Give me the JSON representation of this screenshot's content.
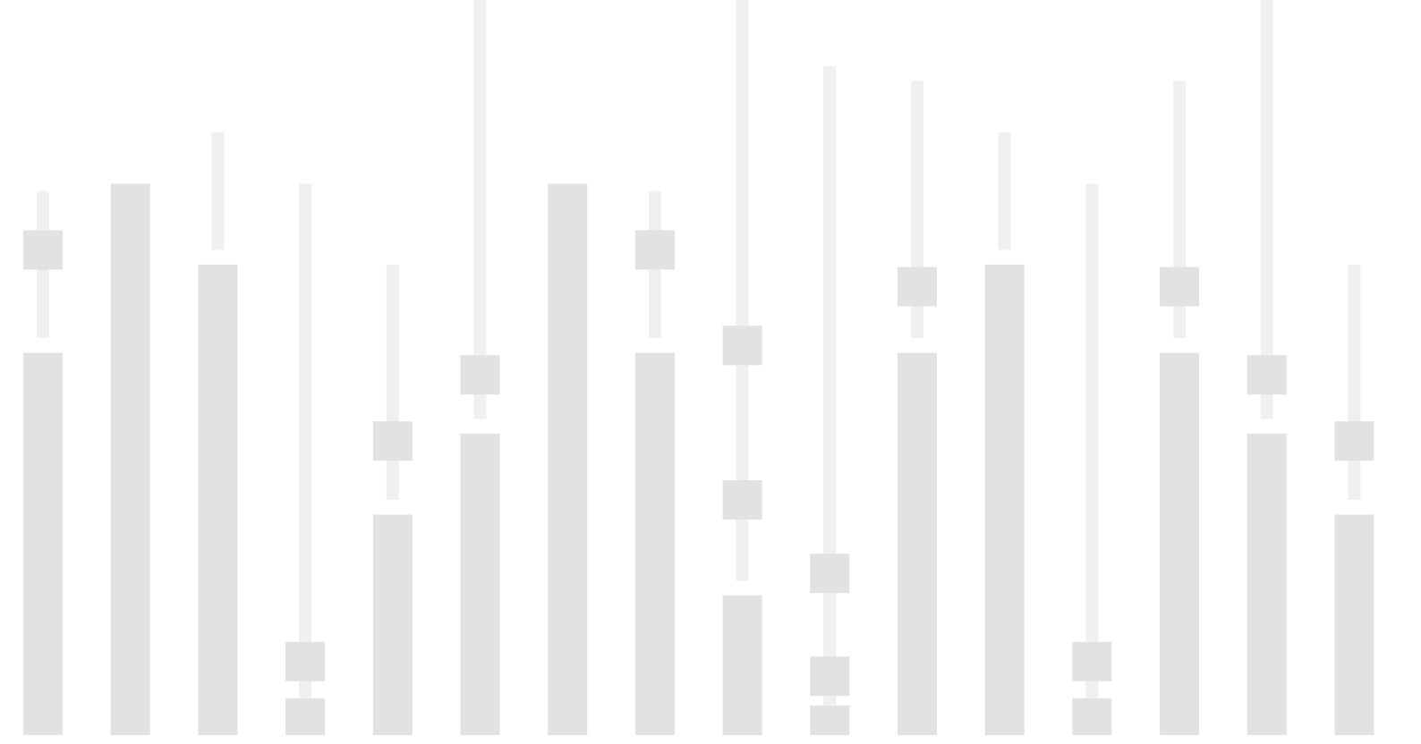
{
  "colors": {
    "background": "#ffffff",
    "skeleton_primary": "#e2e2e2",
    "skeleton_secondary": "#f0f0f0",
    "accent_dot": "#1bb18a"
  },
  "top_fragment": {
    "text": ""
  },
  "skeleton": {
    "columns": [
      {
        "primary_fill": 0.52,
        "range_from": 0.54,
        "range_to": 0.74,
        "markers": [
          0.66
        ]
      },
      {
        "primary_fill": 0.75,
        "range_from": null,
        "range_to": null,
        "markers": []
      },
      {
        "primary_fill": 0.64,
        "range_from": 0.66,
        "range_to": 0.82,
        "markers": []
      },
      {
        "primary_fill": 0.05,
        "range_from": 0.05,
        "range_to": 0.75,
        "markers": [
          0.1
        ]
      },
      {
        "primary_fill": 0.3,
        "range_from": 0.32,
        "range_to": 0.64,
        "markers": [
          0.4
        ]
      },
      {
        "primary_fill": 0.41,
        "range_from": 0.43,
        "range_to": 1.0,
        "markers": [
          0.49
        ]
      },
      {
        "primary_fill": 0.75,
        "range_from": null,
        "range_to": null,
        "markers": []
      },
      {
        "primary_fill": 0.52,
        "range_from": 0.54,
        "range_to": 0.74,
        "markers": [
          0.66
        ]
      },
      {
        "primary_fill": 0.19,
        "range_from": 0.21,
        "range_to": 1.0,
        "markers": [
          0.32,
          0.53
        ]
      },
      {
        "primary_fill": 0.04,
        "range_from": 0.04,
        "range_to": 0.91,
        "markers": [
          0.08,
          0.22
        ]
      },
      {
        "primary_fill": 0.52,
        "range_from": 0.54,
        "range_to": 0.89,
        "markers": [
          0.61
        ]
      },
      {
        "primary_fill": 0.64,
        "range_from": 0.66,
        "range_to": 0.82,
        "markers": []
      },
      {
        "primary_fill": 0.05,
        "range_from": 0.05,
        "range_to": 0.75,
        "markers": [
          0.1
        ]
      },
      {
        "primary_fill": 0.52,
        "range_from": 0.54,
        "range_to": 0.89,
        "markers": [
          0.61
        ]
      },
      {
        "primary_fill": 0.41,
        "range_from": 0.43,
        "range_to": 1.0,
        "markers": [
          0.49
        ]
      },
      {
        "primary_fill": 0.3,
        "range_from": 0.32,
        "range_to": 0.64,
        "markers": [
          0.4
        ]
      }
    ]
  }
}
